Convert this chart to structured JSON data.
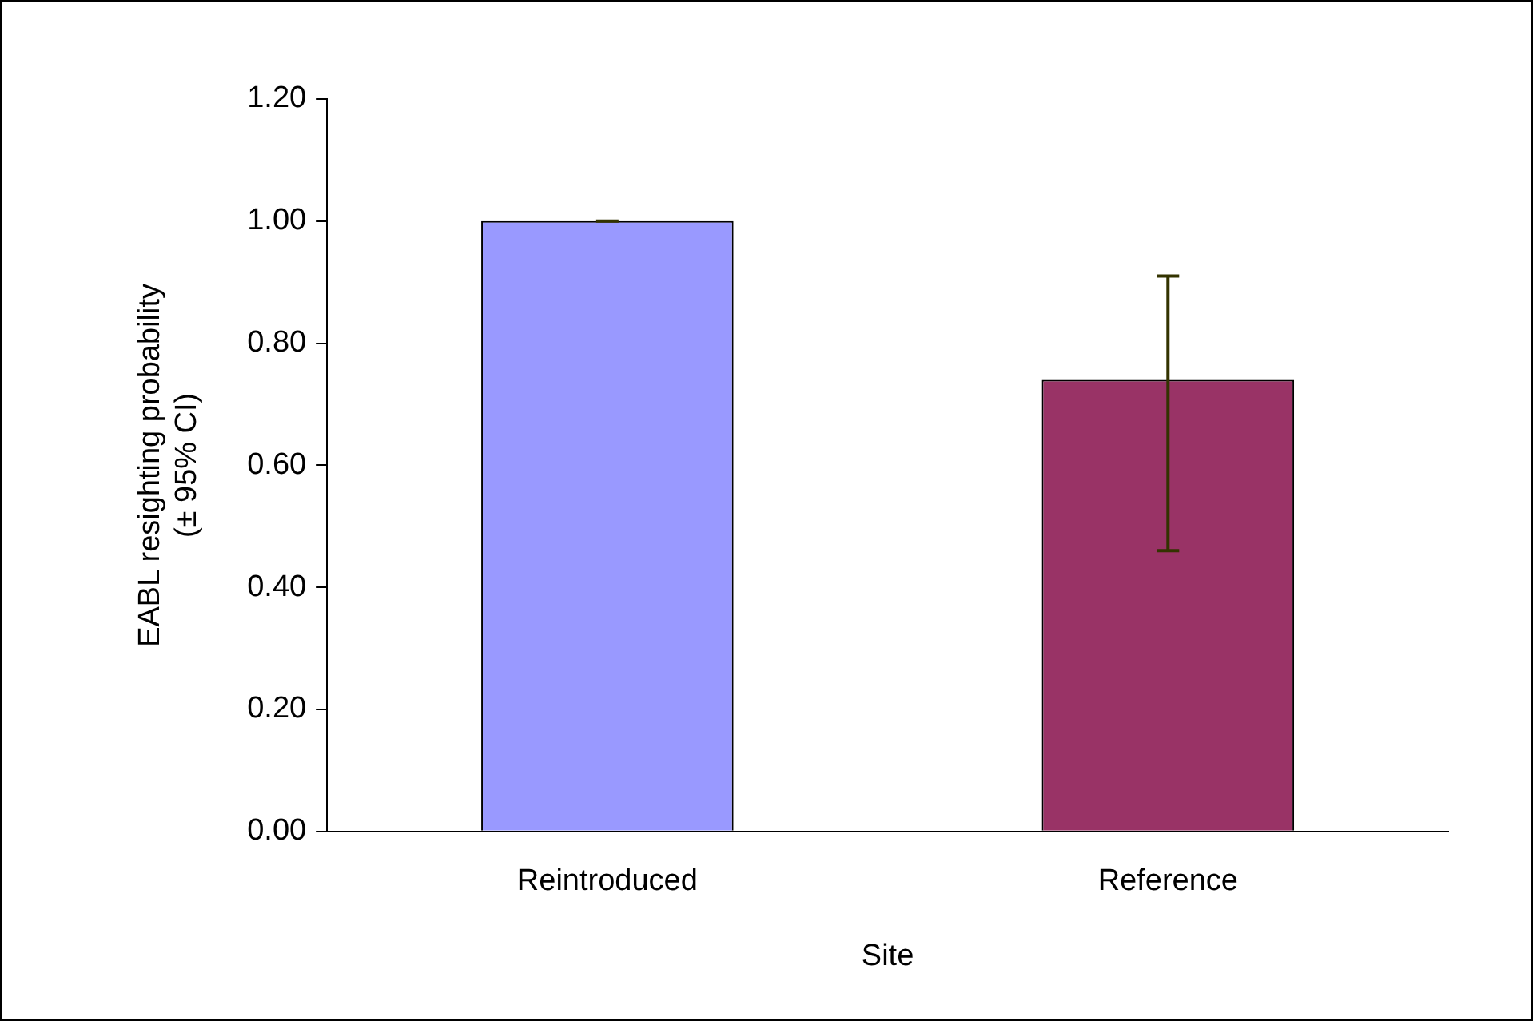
{
  "chart_data": {
    "type": "bar",
    "categories": [
      "Reintroduced",
      "Reference"
    ],
    "values": [
      1.0,
      0.74
    ],
    "colors": [
      "#9999ff",
      "#993366"
    ],
    "errors": [
      [
        1.0,
        1.0
      ],
      [
        0.46,
        0.91
      ]
    ],
    "xlabel": "Site",
    "ylabel": "EABL resighting probability\n(± 95% CI)",
    "ylim": [
      0,
      1.2
    ],
    "yticks": [
      {
        "value": 0,
        "label": "0.00"
      },
      {
        "value": 0.2,
        "label": "0.20"
      },
      {
        "value": 0.4,
        "label": "0.40"
      },
      {
        "value": 0.6,
        "label": "0.60"
      },
      {
        "value": 0.8,
        "label": "0.80"
      },
      {
        "value": 1.0,
        "label": "1.00"
      },
      {
        "value": 1.2,
        "label": "1.20"
      }
    ],
    "grid": false,
    "legend": false
  }
}
